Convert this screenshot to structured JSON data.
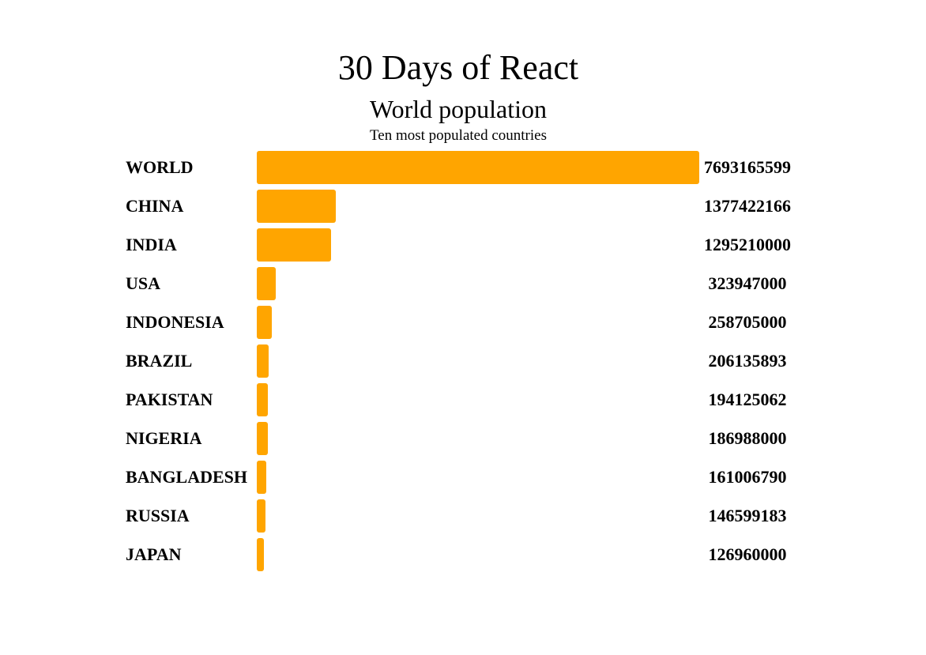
{
  "header": {
    "app_title": "30 Days of React"
  },
  "colors": {
    "bar": "#ffa500",
    "background": "#ffffff",
    "text": "#000000"
  },
  "chart_data": {
    "type": "bar",
    "orientation": "horizontal",
    "title": "World population",
    "subtitle": "Ten most populated countries",
    "categories": [
      "WORLD",
      "CHINA",
      "INDIA",
      "USA",
      "INDONESIA",
      "BRAZIL",
      "PAKISTAN",
      "NIGERIA",
      "BANGLADESH",
      "RUSSIA",
      "JAPAN"
    ],
    "values": [
      7693165599,
      1377422166,
      1295210000,
      323947000,
      258705000,
      206135893,
      194125062,
      186988000,
      161006790,
      146599183,
      126960000
    ],
    "xlim": [
      0,
      7693165599
    ],
    "grid": false,
    "legend": "none"
  }
}
